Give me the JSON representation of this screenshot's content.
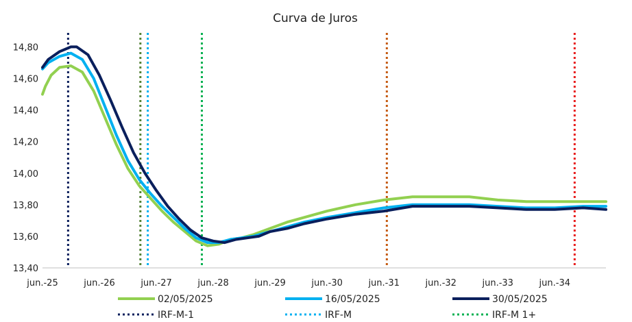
{
  "chart_data": {
    "type": "line",
    "title": "Curva de Juros",
    "xlabel": "",
    "ylabel": "",
    "x_ticks": [
      "jun.-25",
      "jun.-26",
      "jun.-27",
      "jun.-28",
      "jun.-29",
      "jun.-30",
      "jun.-31",
      "jun.-32",
      "jun.-33",
      "jun.-34"
    ],
    "y_ticks": [
      "14,80",
      "14,60",
      "14,40",
      "14,20",
      "14,00",
      "13,80",
      "13,60",
      "13,40"
    ],
    "xlim": [
      2025.0,
      2034.9
    ],
    "ylim": [
      13.4,
      14.88
    ],
    "grid": false,
    "series": [
      {
        "name": "02/05/2025",
        "color": "#92d050",
        "points": [
          [
            2025.0,
            14.5
          ],
          [
            2025.05,
            14.55
          ],
          [
            2025.15,
            14.62
          ],
          [
            2025.3,
            14.67
          ],
          [
            2025.5,
            14.68
          ],
          [
            2025.7,
            14.64
          ],
          [
            2025.9,
            14.52
          ],
          [
            2026.1,
            14.35
          ],
          [
            2026.3,
            14.18
          ],
          [
            2026.5,
            14.03
          ],
          [
            2026.7,
            13.92
          ],
          [
            2026.9,
            13.84
          ],
          [
            2027.1,
            13.76
          ],
          [
            2027.3,
            13.69
          ],
          [
            2027.5,
            13.63
          ],
          [
            2027.7,
            13.57
          ],
          [
            2027.9,
            13.54
          ],
          [
            2028.1,
            13.55
          ],
          [
            2028.3,
            13.58
          ],
          [
            2028.5,
            13.59
          ],
          [
            2028.7,
            13.61
          ],
          [
            2029.0,
            13.65
          ],
          [
            2029.3,
            13.69
          ],
          [
            2029.6,
            13.72
          ],
          [
            2030.0,
            13.76
          ],
          [
            2030.5,
            13.8
          ],
          [
            2031.0,
            13.83
          ],
          [
            2031.5,
            13.85
          ],
          [
            2032.0,
            13.85
          ],
          [
            2032.5,
            13.85
          ],
          [
            2033.0,
            13.83
          ],
          [
            2033.5,
            13.82
          ],
          [
            2034.0,
            13.82
          ],
          [
            2034.5,
            13.82
          ],
          [
            2034.9,
            13.82
          ]
        ]
      },
      {
        "name": "16/05/2025",
        "color": "#00b0f0",
        "points": [
          [
            2025.0,
            14.66
          ],
          [
            2025.1,
            14.7
          ],
          [
            2025.3,
            14.74
          ],
          [
            2025.5,
            14.76
          ],
          [
            2025.7,
            14.72
          ],
          [
            2025.9,
            14.6
          ],
          [
            2026.1,
            14.42
          ],
          [
            2026.3,
            14.24
          ],
          [
            2026.5,
            14.08
          ],
          [
            2026.7,
            13.96
          ],
          [
            2026.9,
            13.87
          ],
          [
            2027.1,
            13.79
          ],
          [
            2027.3,
            13.72
          ],
          [
            2027.5,
            13.65
          ],
          [
            2027.7,
            13.59
          ],
          [
            2027.9,
            13.56
          ],
          [
            2028.1,
            13.56
          ],
          [
            2028.3,
            13.58
          ],
          [
            2028.5,
            13.59
          ],
          [
            2028.7,
            13.6
          ],
          [
            2029.0,
            13.63
          ],
          [
            2029.3,
            13.66
          ],
          [
            2029.6,
            13.69
          ],
          [
            2030.0,
            13.72
          ],
          [
            2030.5,
            13.75
          ],
          [
            2031.0,
            13.78
          ],
          [
            2031.5,
            13.8
          ],
          [
            2032.0,
            13.8
          ],
          [
            2032.5,
            13.8
          ],
          [
            2033.0,
            13.79
          ],
          [
            2033.5,
            13.78
          ],
          [
            2034.0,
            13.78
          ],
          [
            2034.5,
            13.79
          ],
          [
            2034.9,
            13.79
          ]
        ]
      },
      {
        "name": "30/05/2025",
        "color": "#0a1f5c",
        "points": [
          [
            2025.0,
            14.67
          ],
          [
            2025.1,
            14.72
          ],
          [
            2025.3,
            14.77
          ],
          [
            2025.5,
            14.8
          ],
          [
            2025.6,
            14.8
          ],
          [
            2025.8,
            14.75
          ],
          [
            2026.0,
            14.62
          ],
          [
            2026.2,
            14.46
          ],
          [
            2026.4,
            14.29
          ],
          [
            2026.6,
            14.13
          ],
          [
            2026.8,
            14.0
          ],
          [
            2027.0,
            13.89
          ],
          [
            2027.2,
            13.79
          ],
          [
            2027.4,
            13.71
          ],
          [
            2027.6,
            13.64
          ],
          [
            2027.8,
            13.59
          ],
          [
            2028.0,
            13.57
          ],
          [
            2028.2,
            13.56
          ],
          [
            2028.4,
            13.58
          ],
          [
            2028.6,
            13.59
          ],
          [
            2028.8,
            13.6
          ],
          [
            2029.0,
            13.63
          ],
          [
            2029.3,
            13.65
          ],
          [
            2029.6,
            13.68
          ],
          [
            2030.0,
            13.71
          ],
          [
            2030.5,
            13.74
          ],
          [
            2031.0,
            13.76
          ],
          [
            2031.5,
            13.79
          ],
          [
            2032.0,
            13.79
          ],
          [
            2032.5,
            13.79
          ],
          [
            2033.0,
            13.78
          ],
          [
            2033.5,
            13.77
          ],
          [
            2034.0,
            13.77
          ],
          [
            2034.5,
            13.78
          ],
          [
            2034.9,
            13.77
          ]
        ]
      }
    ],
    "vlines": [
      {
        "name": "IRF-M-1",
        "x": 2025.45,
        "color": "#0a1f5c",
        "in_legend": true
      },
      {
        "name": "IRF-M",
        "x": 2026.85,
        "color": "#00b0f0",
        "in_legend": true
      },
      {
        "name": "IRF-M 1+",
        "x": 2027.8,
        "color": "#00b050",
        "in_legend": true
      },
      {
        "name": "",
        "x": 2026.72,
        "color": "#548235",
        "in_legend": false
      },
      {
        "name": "",
        "x": 2031.05,
        "color": "#c55a11",
        "in_legend": false
      },
      {
        "name": "",
        "x": 2034.35,
        "color": "#e81d1d",
        "in_legend": false
      }
    ]
  }
}
